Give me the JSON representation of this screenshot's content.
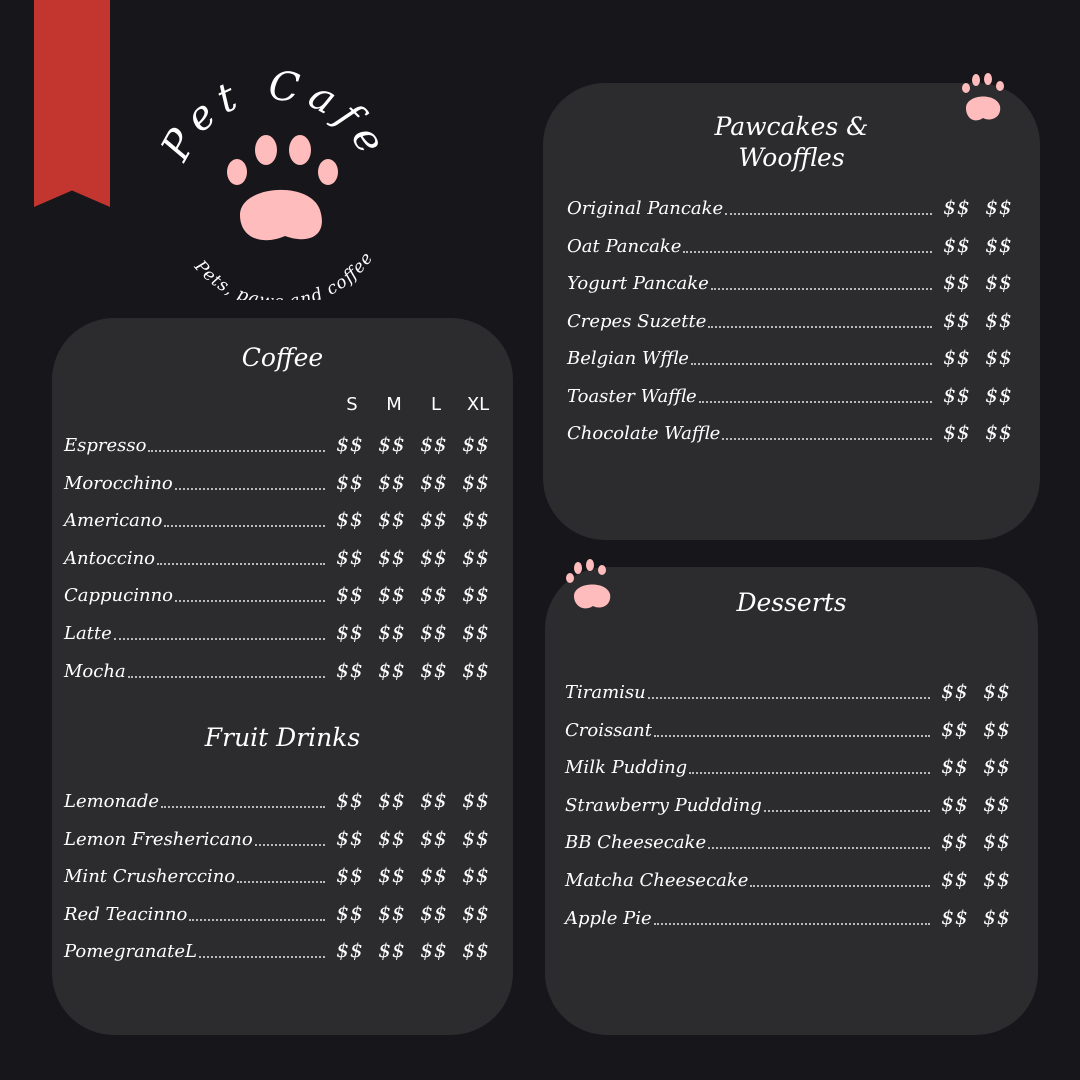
{
  "colors": {
    "background": "#16161b",
    "panel": "#2c2c2f",
    "ribbon": "#c3362f",
    "paw": "#ffbcbc"
  },
  "logo": {
    "title": "Pet Cafe",
    "tagline": "Pets, paws and coffee"
  },
  "coffee": {
    "title": "Coffee",
    "sizes": [
      "S",
      "M",
      "L",
      "XL"
    ],
    "items": [
      {
        "name": "Espresso",
        "prices": [
          "$$",
          "$$",
          "$$",
          "$$"
        ]
      },
      {
        "name": "Morocchino",
        "prices": [
          "$$",
          "$$",
          "$$",
          "$$"
        ]
      },
      {
        "name": "Americano",
        "prices": [
          "$$",
          "$$",
          "$$",
          "$$"
        ]
      },
      {
        "name": "Antoccino",
        "prices": [
          "$$",
          "$$",
          "$$",
          "$$"
        ]
      },
      {
        "name": "Cappucinno",
        "prices": [
          "$$",
          "$$",
          "$$",
          "$$"
        ]
      },
      {
        "name": "Latte",
        "prices": [
          "$$",
          "$$",
          "$$",
          "$$"
        ]
      },
      {
        "name": "Mocha",
        "prices": [
          "$$",
          "$$",
          "$$",
          "$$"
        ]
      }
    ]
  },
  "fruit_drinks": {
    "title": "Fruit Drinks",
    "items": [
      {
        "name": "Lemonade",
        "prices": [
          "$$",
          "$$",
          "$$",
          "$$"
        ]
      },
      {
        "name": "Lemon Freshericano",
        "prices": [
          "$$",
          "$$",
          "$$",
          "$$"
        ]
      },
      {
        "name": "Mint Crusherccino",
        "prices": [
          "$$",
          "$$",
          "$$",
          "$$"
        ]
      },
      {
        "name": "Red Teacinno",
        "prices": [
          "$$",
          "$$",
          "$$",
          "$$"
        ]
      },
      {
        "name": "PomegranateL",
        "prices": [
          "$$",
          "$$",
          "$$",
          "$$"
        ]
      }
    ]
  },
  "pawcakes": {
    "title_line1": "Pawcakes &",
    "title_line2": "Wooffles",
    "items": [
      {
        "name": "Original Pancake",
        "prices": [
          "$$",
          "$$"
        ]
      },
      {
        "name": "Oat Pancake",
        "prices": [
          "$$",
          "$$"
        ]
      },
      {
        "name": "Yogurt Pancake",
        "prices": [
          "$$",
          "$$"
        ]
      },
      {
        "name": "Crepes Suzette",
        "prices": [
          "$$",
          "$$"
        ]
      },
      {
        "name": "Belgian Wffle",
        "prices": [
          "$$",
          "$$"
        ]
      },
      {
        "name": "Toaster Waffle",
        "prices": [
          "$$",
          "$$"
        ]
      },
      {
        "name": "Chocolate Waffle",
        "prices": [
          "$$",
          "$$"
        ]
      }
    ]
  },
  "desserts": {
    "title": "Desserts",
    "items": [
      {
        "name": "Tiramisu",
        "prices": [
          "$$",
          "$$"
        ]
      },
      {
        "name": "Croissant",
        "prices": [
          "$$",
          "$$"
        ]
      },
      {
        "name": "Milk Pudding",
        "prices": [
          "$$",
          "$$"
        ]
      },
      {
        "name": "Strawberry Puddding",
        "prices": [
          "$$",
          "$$"
        ]
      },
      {
        "name": "BB Cheesecake",
        "prices": [
          "$$",
          "$$"
        ]
      },
      {
        "name": "Matcha Cheesecake",
        "prices": [
          "$$",
          "$$"
        ]
      },
      {
        "name": "Apple Pie",
        "prices": [
          "$$",
          "$$"
        ]
      }
    ]
  }
}
